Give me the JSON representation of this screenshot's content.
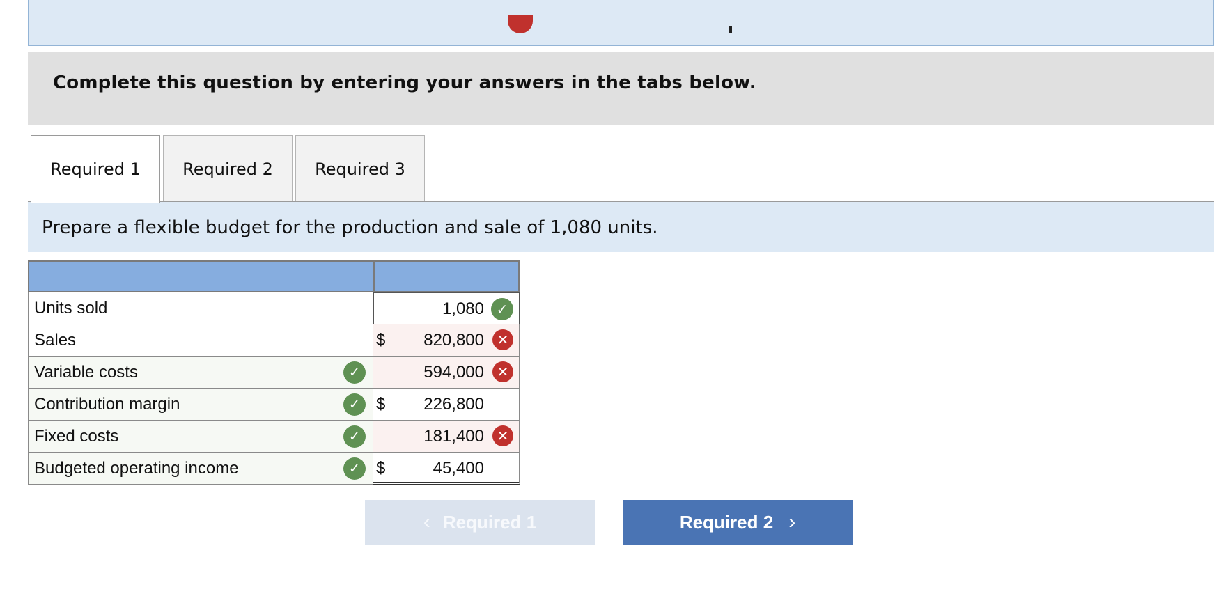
{
  "instruction": "Complete this question by entering your answers in the tabs below.",
  "tabs": [
    {
      "label": "Required 1",
      "active": true
    },
    {
      "label": "Required 2",
      "active": false
    },
    {
      "label": "Required 3",
      "active": false
    }
  ],
  "prompt": "Prepare a flexible budget for the production and sale of 1,080 units.",
  "table": {
    "rows": [
      {
        "label": "Units sold",
        "dollar": "",
        "value": "1,080",
        "status": "correct"
      },
      {
        "label": "Sales",
        "dollar": "$",
        "value": "820,800",
        "status": "incorrect"
      },
      {
        "label": "Variable costs",
        "dollar": "",
        "value": "594,000",
        "status": "incorrect",
        "label_status": "correct"
      },
      {
        "label": "Contribution margin",
        "dollar": "$",
        "value": "226,800",
        "label_status": "correct"
      },
      {
        "label": "Fixed costs",
        "dollar": "",
        "value": "181,400",
        "status": "incorrect",
        "label_status": "correct"
      },
      {
        "label": "Budgeted operating income",
        "dollar": "$",
        "value": "45,400",
        "label_status": "correct"
      }
    ]
  },
  "navigation": {
    "prev_label": "Required 1",
    "next_label": "Required 2",
    "prev_icon": "chevron-left-icon",
    "next_icon": "chevron-right-icon"
  },
  "colors": {
    "correct": "#5f9153",
    "incorrect": "#c0312d",
    "header": "#86addf",
    "next_button": "#4a74b4"
  }
}
